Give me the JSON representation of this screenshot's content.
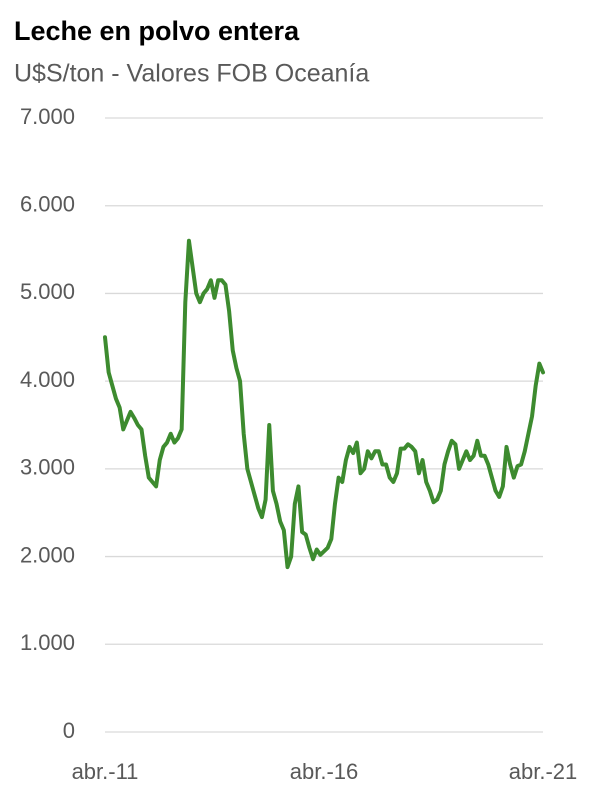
{
  "chart_data": {
    "type": "line",
    "title": "Leche en polvo entera",
    "subtitle": "U$S/ton - Valores FOB Oceanía",
    "categories": [
      "abr.-11",
      null,
      null,
      null,
      null,
      null,
      null,
      null,
      null,
      null,
      null,
      null,
      null,
      null,
      null,
      null,
      null,
      null,
      null,
      null,
      null,
      null,
      null,
      null,
      null,
      null,
      null,
      null,
      null,
      null,
      null,
      null,
      null,
      null,
      null,
      null,
      null,
      null,
      null,
      null,
      null,
      null,
      null,
      null,
      null,
      null,
      null,
      null,
      null,
      null,
      null,
      null,
      null,
      null,
      null,
      null,
      null,
      null,
      null,
      null,
      "abr.-16",
      null,
      null,
      null,
      null,
      null,
      null,
      null,
      null,
      null,
      null,
      null,
      null,
      null,
      null,
      null,
      null,
      null,
      null,
      null,
      null,
      null,
      null,
      null,
      null,
      null,
      null,
      null,
      null,
      null,
      null,
      null,
      null,
      null,
      null,
      null,
      null,
      null,
      null,
      null,
      null,
      null,
      null,
      null,
      null,
      null,
      null,
      null,
      null,
      null,
      null,
      null,
      null,
      null,
      null,
      null,
      null,
      null,
      null,
      null,
      "abr.-21"
    ],
    "series": [
      {
        "name": "Leche en polvo entera",
        "color": "#3d8b2f",
        "values": [
          4500,
          4100,
          3950,
          3800,
          3700,
          3450,
          3550,
          3650,
          3580,
          3500,
          3450,
          3150,
          2900,
          2850,
          2800,
          3100,
          3250,
          3300,
          3400,
          3300,
          3350,
          3450,
          4900,
          5600,
          5300,
          5000,
          4900,
          5000,
          5050,
          5150,
          4950,
          5150,
          5150,
          5100,
          4800,
          4350,
          4150,
          4000,
          3400,
          3000,
          2850,
          2700,
          2550,
          2450,
          2650,
          3500,
          2750,
          2600,
          2400,
          2300,
          1880,
          2000,
          2600,
          2800,
          2280,
          2250,
          2100,
          1970,
          2080,
          2020,
          2060,
          2100,
          2200,
          2600,
          2900,
          2850,
          3100,
          3250,
          3180,
          3300,
          2950,
          3000,
          3200,
          3120,
          3200,
          3200,
          3050,
          3050,
          2900,
          2850,
          2950,
          3230,
          3230,
          3280,
          3250,
          3200,
          2950,
          3100,
          2850,
          2750,
          2620,
          2650,
          2750,
          3050,
          3200,
          3320,
          3280,
          3000,
          3100,
          3200,
          3100,
          3150,
          3320,
          3150,
          3150,
          3050,
          2900,
          2750,
          2680,
          2800,
          3250,
          3050,
          2900,
          3030,
          3050,
          3200,
          3400,
          3600,
          3950,
          4200,
          4100
        ]
      }
    ],
    "ylim": [
      0,
      7000
    ],
    "yticks": [
      0,
      {
        "value": 1000,
        "label": "1.000"
      },
      {
        "value": 2000,
        "label": "2.000"
      },
      {
        "value": 3000,
        "label": "3.000"
      },
      {
        "value": 4000,
        "label": "4.000"
      },
      {
        "value": 5000,
        "label": "5.000"
      },
      {
        "value": 6000,
        "label": "6.000"
      },
      {
        "value": 7000,
        "label": "7.000"
      }
    ],
    "grid": true
  }
}
